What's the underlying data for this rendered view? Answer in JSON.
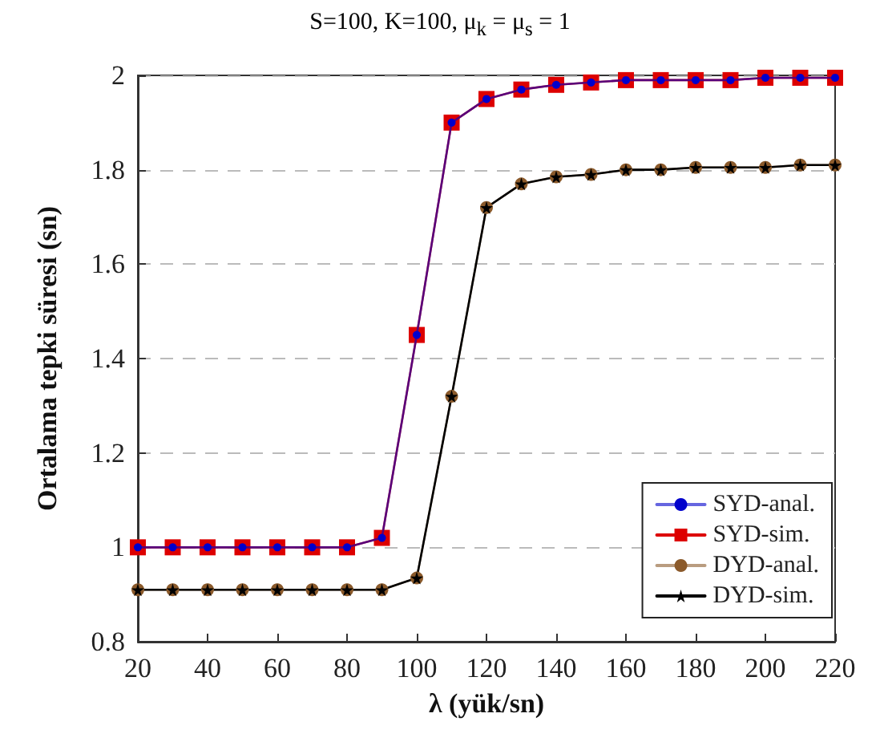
{
  "chart_data": {
    "type": "line",
    "title": "S=100, K=100, μ$_{k}$ = μ$_{s}$ = 1",
    "xlabel": "λ (yük/sn)",
    "ylabel": "Ortalama tepki süresi (sn)",
    "x": [
      20,
      30,
      40,
      50,
      60,
      70,
      80,
      90,
      100,
      110,
      120,
      130,
      140,
      150,
      160,
      170,
      180,
      190,
      200,
      210,
      220
    ],
    "series": [
      {
        "name": "SYD-anal.",
        "color": "#0000cc",
        "marker": "circle",
        "values": [
          1.0,
          1.0,
          1.0,
          1.0,
          1.0,
          1.0,
          1.0,
          1.02,
          1.45,
          1.9,
          1.95,
          1.97,
          1.98,
          1.985,
          1.99,
          1.99,
          1.99,
          1.99,
          1.995,
          1.995,
          1.995
        ]
      },
      {
        "name": "SYD-sim.",
        "color": "#dd0000",
        "marker": "square",
        "values": [
          1.0,
          1.0,
          1.0,
          1.0,
          1.0,
          1.0,
          1.0,
          1.02,
          1.45,
          1.9,
          1.95,
          1.97,
          1.98,
          1.985,
          1.99,
          1.99,
          1.99,
          1.99,
          1.995,
          1.995,
          1.995
        ]
      },
      {
        "name": "DYD-anal.",
        "color": "#8b5a2b",
        "marker": "circle",
        "values": [
          0.91,
          0.91,
          0.91,
          0.91,
          0.91,
          0.91,
          0.91,
          0.91,
          0.935,
          1.32,
          1.72,
          1.77,
          1.785,
          1.79,
          1.8,
          1.8,
          1.805,
          1.805,
          1.805,
          1.81,
          1.81
        ]
      },
      {
        "name": "DYD-sim.",
        "color": "#000000",
        "marker": "star",
        "values": [
          0.91,
          0.91,
          0.91,
          0.91,
          0.91,
          0.91,
          0.91,
          0.91,
          0.935,
          1.32,
          1.72,
          1.77,
          1.785,
          1.79,
          1.8,
          1.8,
          1.805,
          1.805,
          1.805,
          1.81,
          1.81
        ]
      }
    ],
    "xlim": [
      20,
      220
    ],
    "xticks": [
      20,
      40,
      60,
      80,
      100,
      120,
      140,
      160,
      180,
      200,
      220
    ],
    "ylim": [
      0.8,
      2
    ],
    "yticks": [
      0.8,
      1,
      1.2,
      1.4,
      1.6,
      1.8,
      2
    ],
    "grid": "y",
    "legend": "bottom right",
    "line_style": "solid"
  }
}
